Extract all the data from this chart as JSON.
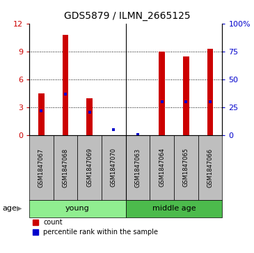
{
  "title": "GDS5879 / ILMN_2665125",
  "samples": [
    "GSM1847067",
    "GSM1847068",
    "GSM1847069",
    "GSM1847070",
    "GSM1847063",
    "GSM1847064",
    "GSM1847065",
    "GSM1847066"
  ],
  "counts": [
    4.5,
    10.8,
    4.0,
    0.03,
    0.03,
    9.0,
    8.5,
    9.3
  ],
  "percentiles": [
    22,
    37,
    21,
    5,
    0.5,
    30,
    30,
    30
  ],
  "group_separator": 4,
  "ylim_left": [
    0,
    12
  ],
  "ylim_right": [
    0,
    100
  ],
  "yticks_left": [
    0,
    3,
    6,
    9,
    12
  ],
  "yticks_right": [
    0,
    25,
    50,
    75,
    100
  ],
  "ytick_labels_right": [
    "0",
    "25",
    "50",
    "75",
    "100%"
  ],
  "bar_color": "#CC0000",
  "marker_color": "#0000CC",
  "bg_color": "#FFFFFF",
  "sample_bg_color": "#BEBEBE",
  "young_color": "#90EE90",
  "mid_color": "#4CBB4C",
  "age_label": "age",
  "legend_count_label": "count",
  "legend_pct_label": "percentile rank within the sample",
  "bar_width": 0.25
}
